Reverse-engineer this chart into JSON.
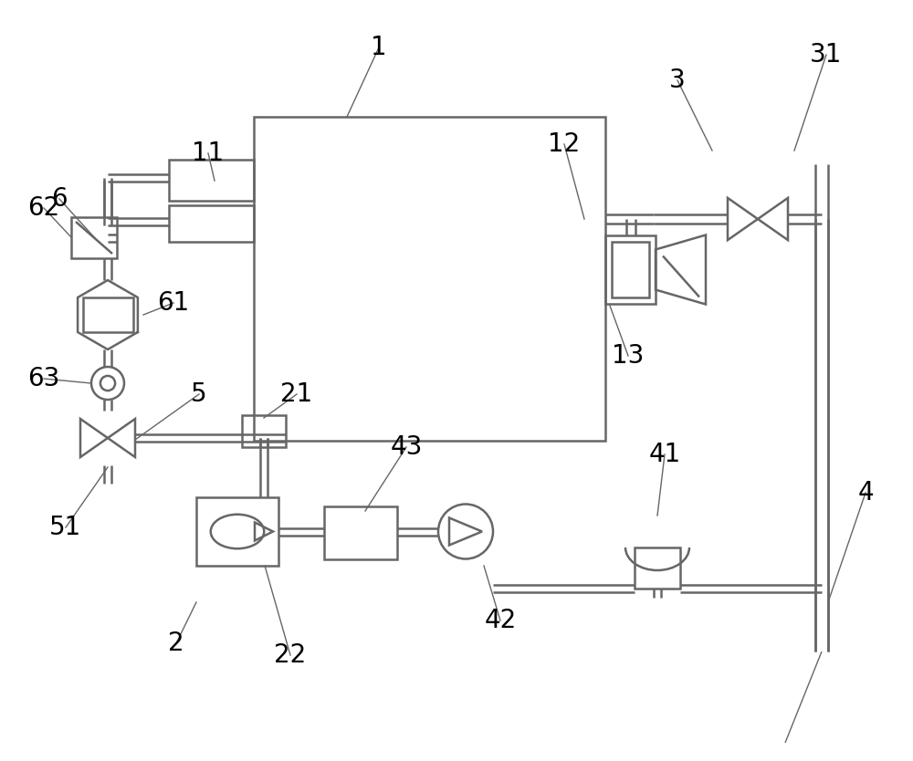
{
  "bg_color": "#ffffff",
  "lc": "#666666",
  "lw": 1.8,
  "thin_lw": 1.0,
  "label_fs": 20
}
